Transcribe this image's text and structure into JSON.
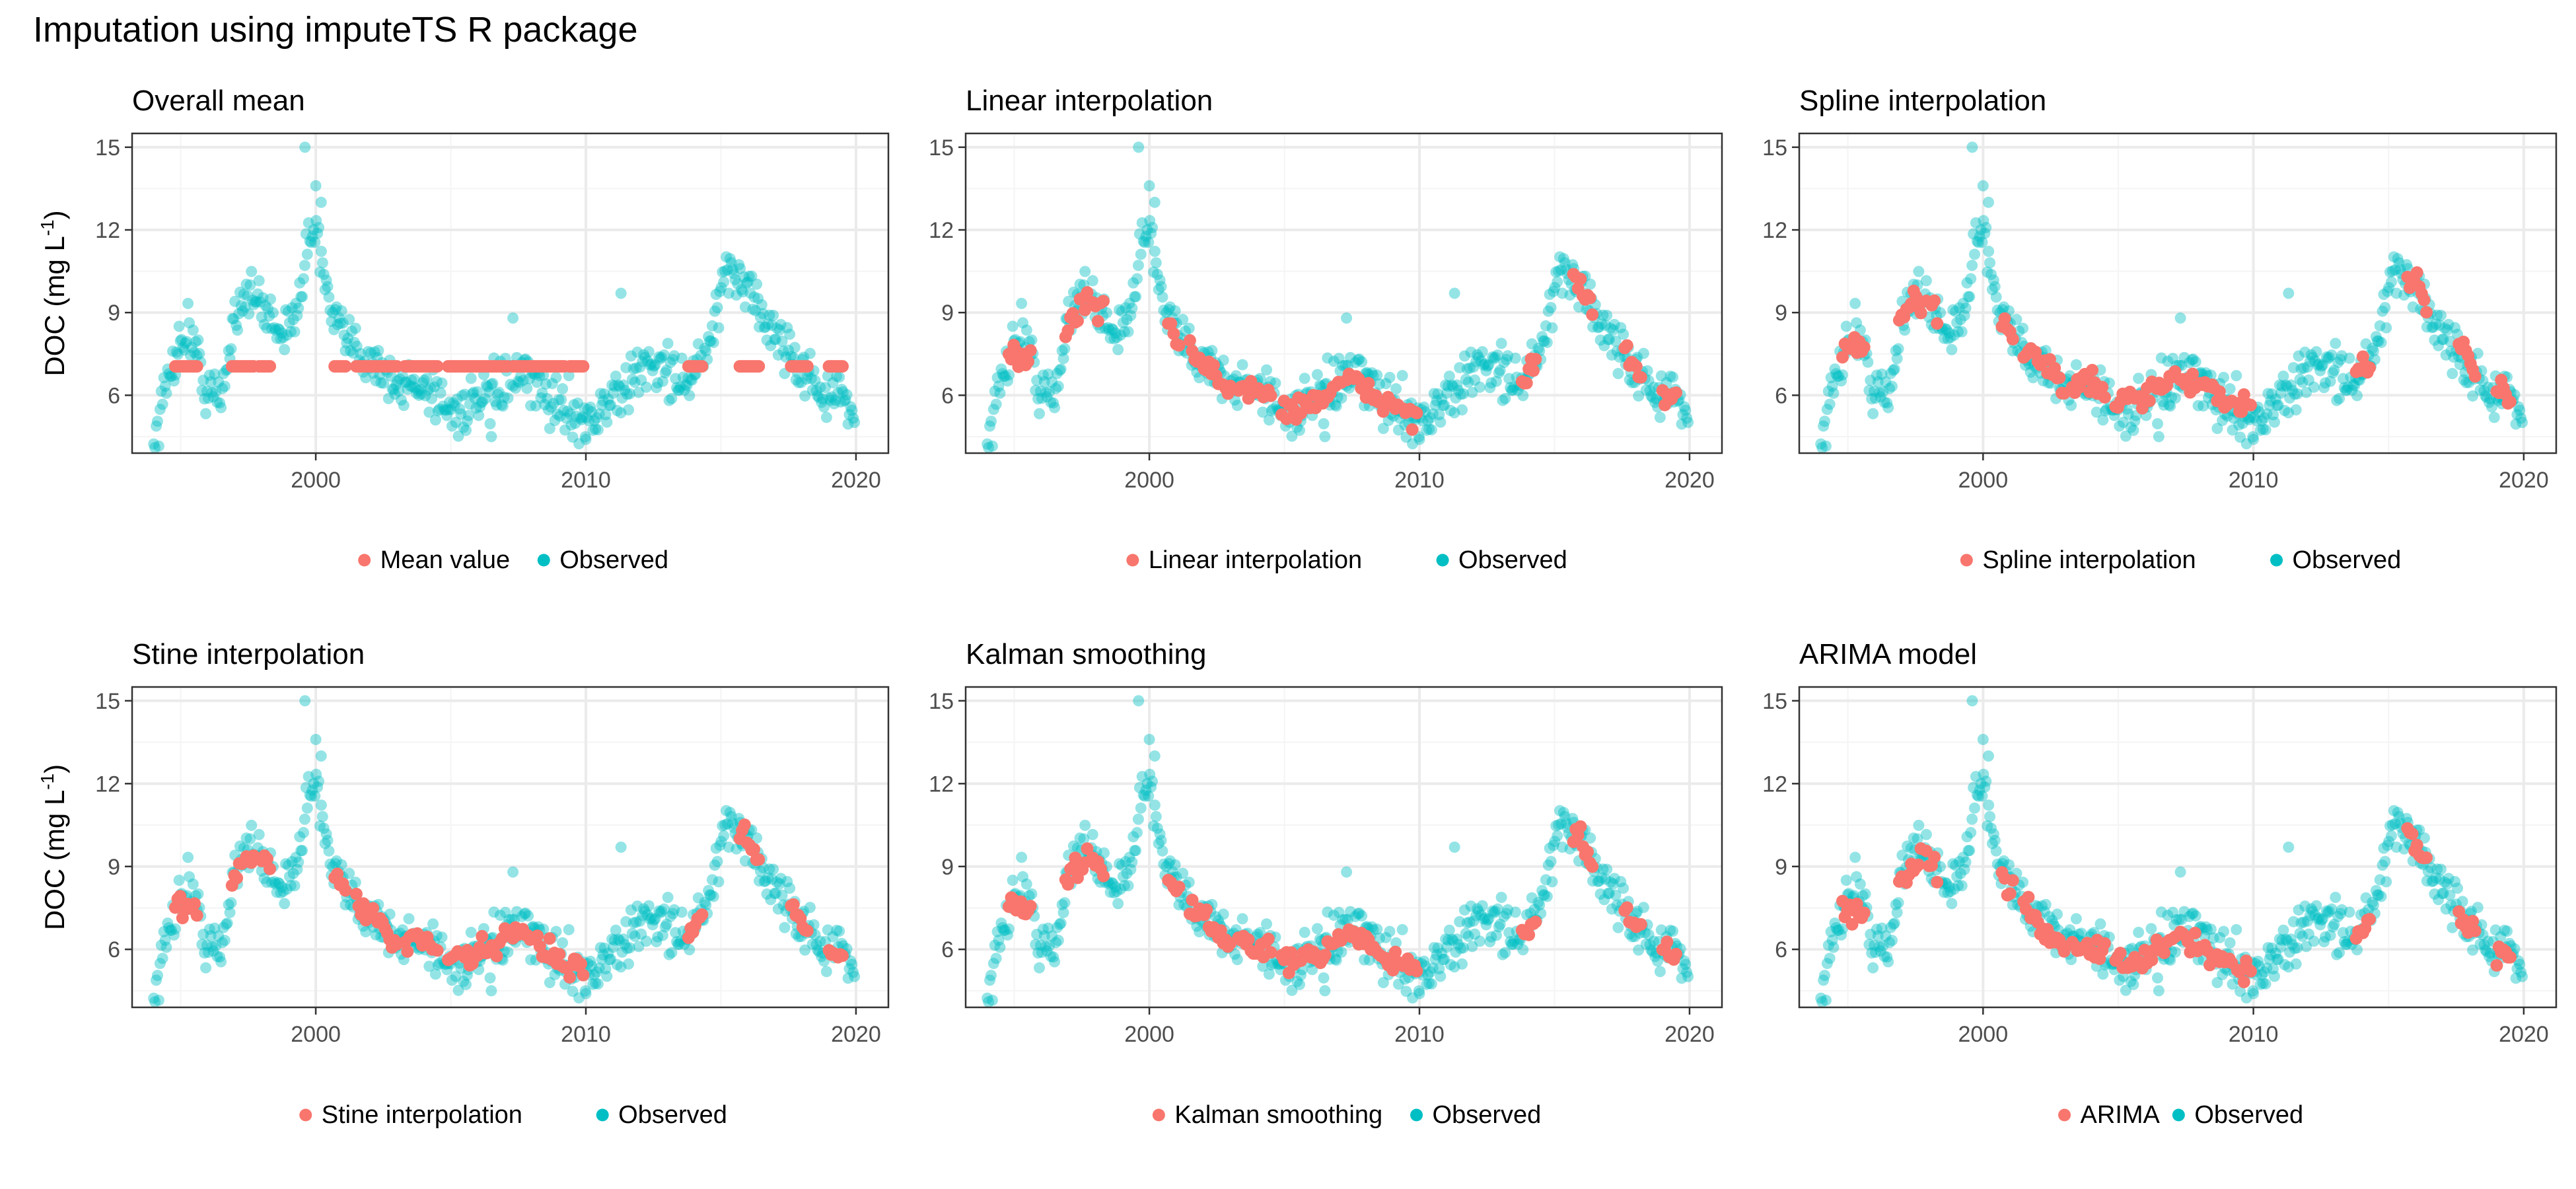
{
  "figure": {
    "title": "Imputation using imputeTS R package",
    "ylabel_main": "DOC (mg L",
    "ylabel_sup": "-1",
    "ylabel_close": ")"
  },
  "colors": {
    "observed": "#00BFC4",
    "imputed": "#F8766D",
    "panel_border": "#333333",
    "grid_major": "#EBEBEB",
    "grid_minor": "#F5F5F5",
    "tick_text": "#4D4D4D"
  },
  "axes": {
    "xlim": [
      1993.2,
      2021.2
    ],
    "ylim": [
      3.9,
      15.5
    ],
    "x_ticks": [
      2000,
      2010,
      2020
    ],
    "y_ticks": [
      6,
      9,
      12,
      15
    ],
    "x_minor": [
      1995,
      2005,
      2015
    ],
    "y_minor": [
      4.5,
      7.5,
      10.5,
      13.5
    ]
  },
  "chart_data": [
    {
      "type": "scatter",
      "title": "Overall mean",
      "legend": [
        "Mean value",
        "Observed"
      ],
      "legend_position": "bottom",
      "xlabel": "",
      "ylabel": "DOC (mg L-1)"
    },
    {
      "type": "scatter",
      "title": "Linear interpolation",
      "legend": [
        "Linear interpolation",
        "Observed"
      ],
      "legend_position": "bottom",
      "xlabel": "",
      "ylabel": ""
    },
    {
      "type": "scatter",
      "title": "Spline interpolation",
      "legend": [
        "Spline interpolation",
        "Observed"
      ],
      "legend_position": "bottom",
      "xlabel": "",
      "ylabel": ""
    },
    {
      "type": "scatter",
      "title": "Stine interpolation",
      "legend": [
        "Stine interpolation",
        "Observed"
      ],
      "legend_position": "bottom",
      "xlabel": "",
      "ylabel": "DOC (mg L-1)"
    },
    {
      "type": "scatter",
      "title": "Kalman smoothing",
      "legend": [
        "Kalman smoothing",
        "Observed"
      ],
      "legend_position": "bottom",
      "xlabel": "",
      "ylabel": ""
    },
    {
      "type": "scatter",
      "title": "ARIMA model",
      "legend": [
        "ARIMA",
        "Observed"
      ],
      "legend_position": "bottom",
      "xlabel": "",
      "ylabel": ""
    }
  ],
  "series": {
    "observed_anchors": [
      [
        1994.0,
        4.3
      ],
      [
        1994.7,
        7.3
      ],
      [
        1995.3,
        8.5
      ],
      [
        1995.9,
        6.3
      ],
      [
        1996.5,
        5.8
      ],
      [
        1997.0,
        9.0
      ],
      [
        1997.4,
        9.8
      ],
      [
        1998.0,
        9.2
      ],
      [
        1998.6,
        8.6
      ],
      [
        1999.0,
        8.0
      ],
      [
        1999.5,
        10.5
      ],
      [
        2000.0,
        12.3
      ],
      [
        2000.5,
        9.0
      ],
      [
        2001.0,
        8.1
      ],
      [
        2001.6,
        7.6
      ],
      [
        2002.3,
        7.2
      ],
      [
        2003.0,
        6.1
      ],
      [
        2003.6,
        6.5
      ],
      [
        2004.3,
        6.2
      ],
      [
        2005.0,
        5.4
      ],
      [
        2005.7,
        5.6
      ],
      [
        2006.3,
        5.7
      ],
      [
        2007.0,
        6.5
      ],
      [
        2007.7,
        6.6
      ],
      [
        2008.3,
        6.2
      ],
      [
        2009.0,
        5.6
      ],
      [
        2009.6,
        5.4
      ],
      [
        2010.2,
        5.1
      ],
      [
        2011.0,
        5.9
      ],
      [
        2011.6,
        6.3
      ],
      [
        2012.2,
        7.2
      ],
      [
        2013.0,
        6.9
      ],
      [
        2013.8,
        6.5
      ],
      [
        2014.4,
        7.3
      ],
      [
        2015.0,
        9.5
      ],
      [
        2015.4,
        10.6
      ],
      [
        2016.0,
        10.0
      ],
      [
        2016.7,
        8.5
      ],
      [
        2017.3,
        8.0
      ],
      [
        2018.0,
        6.9
      ],
      [
        2018.8,
        6.1
      ],
      [
        2019.5,
        5.8
      ],
      [
        2019.9,
        5.2
      ]
    ],
    "observed_extras": [
      [
        1999.6,
        15.0
      ],
      [
        2000.0,
        13.6
      ],
      [
        2000.2,
        13.0
      ],
      [
        2011.3,
        9.7
      ],
      [
        2007.3,
        8.8
      ],
      [
        2010.0,
        4.4
      ],
      [
        2006.5,
        4.5
      ]
    ],
    "gaps": [
      [
        1994.8,
        1995.6
      ],
      [
        1996.9,
        1997.7
      ],
      [
        1997.9,
        1998.3
      ],
      [
        2000.7,
        2001.1
      ],
      [
        2001.5,
        2003.0
      ],
      [
        2003.3,
        2004.5
      ],
      [
        2004.9,
        2005.7
      ],
      [
        2005.8,
        2006.6
      ],
      [
        2006.7,
        2007.1
      ],
      [
        2007.3,
        2009.2
      ],
      [
        2009.4,
        2009.9
      ],
      [
        2013.8,
        2014.3
      ],
      [
        2015.7,
        2016.4
      ],
      [
        2017.6,
        2018.2
      ],
      [
        2019.0,
        2019.5
      ]
    ],
    "mean_value": 7.05
  }
}
